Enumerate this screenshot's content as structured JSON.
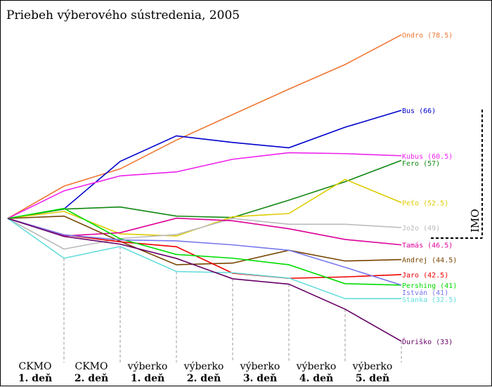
{
  "chart_data": {
    "type": "line",
    "title": "Priebeh výberového sústredenia, 2005",
    "categories": [
      {
        "line1": "",
        "line2": ""
      },
      {
        "line1": "CKMO",
        "line2": "1. deň"
      },
      {
        "line1": "CKMO",
        "line2": "2. deň"
      },
      {
        "line1": "výberko",
        "line2": "1. deň"
      },
      {
        "line1": "výberko",
        "line2": "2. deň"
      },
      {
        "line1": "výberko",
        "line2": "3. deň"
      },
      {
        "line1": "výberko",
        "line2": "4. deň"
      },
      {
        "line1": "výberko",
        "line2": "5. deň"
      }
    ],
    "xlabel": "",
    "ylabel": "",
    "ylim": [
      -50,
      80
    ],
    "grid": false,
    "annotation": {
      "text": "IMO",
      "threshold": 46.5
    },
    "series": [
      {
        "name": "Ondro",
        "final": "78.5",
        "color": "#ee7733",
        "values": [
          0,
          13.8,
          21.2,
          33.5,
          44.4,
          55.3,
          65.8,
          78.5
        ]
      },
      {
        "name": "Bus",
        "final": "66",
        "color": "#0000cc",
        "values": [
          0,
          4.0,
          24.4,
          35.3,
          32.5,
          30.2,
          39.0,
          46.2
        ]
      },
      {
        "name": "Kubus",
        "final": "60.5",
        "color": "#ee22ee",
        "values": [
          0,
          11.8,
          18.2,
          19.9,
          25.3,
          28.1,
          27.7,
          26.8
        ]
      },
      {
        "name": "Fero",
        "final": "57",
        "color": "#118811",
        "values": [
          0,
          4.0,
          4.9,
          1.0,
          0.4,
          7.8,
          15.7,
          24.8
        ]
      },
      {
        "name": "Peťo",
        "final": "52.5",
        "color": "#ddcc00",
        "values": [
          0,
          3.0,
          -6.6,
          -7.5,
          0.7,
          2.1,
          16.7,
          6.8
        ]
      },
      {
        "name": "Jožo",
        "final": "49",
        "color": "#bbbbbb",
        "values": [
          0,
          -13.1,
          -8.6,
          -6.9,
          0,
          -2.5,
          -2.5,
          -3.9
        ]
      },
      {
        "name": "Tamás",
        "final": "46.5",
        "color": "#dd0099",
        "values": [
          0,
          -7.5,
          -6.1,
          0.1,
          -1.0,
          -4.4,
          -9.0,
          -11.3
        ]
      },
      {
        "name": "Andrej",
        "final": "44.5",
        "color": "#774400",
        "values": [
          0,
          1.0,
          -9.8,
          -19.8,
          -19.1,
          -13.6,
          -18.2,
          -17.6
        ]
      },
      {
        "name": "Jaro",
        "final": "42.5",
        "color": "#ee0000",
        "values": [
          0,
          -7.0,
          -10.0,
          -12.1,
          -23.4,
          -25.6,
          -25.0,
          -24.0
        ]
      },
      {
        "name": "Pershing",
        "final": "41",
        "color": "#00dd00",
        "values": [
          0,
          4.3,
          -8.7,
          -15.4,
          -17.0,
          -19.8,
          -27.9,
          -28.5
        ]
      },
      {
        "name": "István",
        "final": "41",
        "color": "#7777ee",
        "values": [
          0,
          -7.0,
          -9.2,
          -9.6,
          -11.3,
          -13.6,
          -20.9,
          -28.5
        ]
      },
      {
        "name": "Stanka",
        "final": "32.5",
        "color": "#66dddd",
        "values": [
          0,
          -17.0,
          -12.0,
          -22.7,
          -23.2,
          -25.5,
          -34.3,
          -34.3
        ]
      },
      {
        "name": "Ďuriško",
        "final": "33",
        "color": "#660066",
        "values": [
          0,
          -7.7,
          -11.0,
          -17.1,
          -25.8,
          -28.1,
          -38.8,
          -52.5
        ]
      }
    ]
  }
}
